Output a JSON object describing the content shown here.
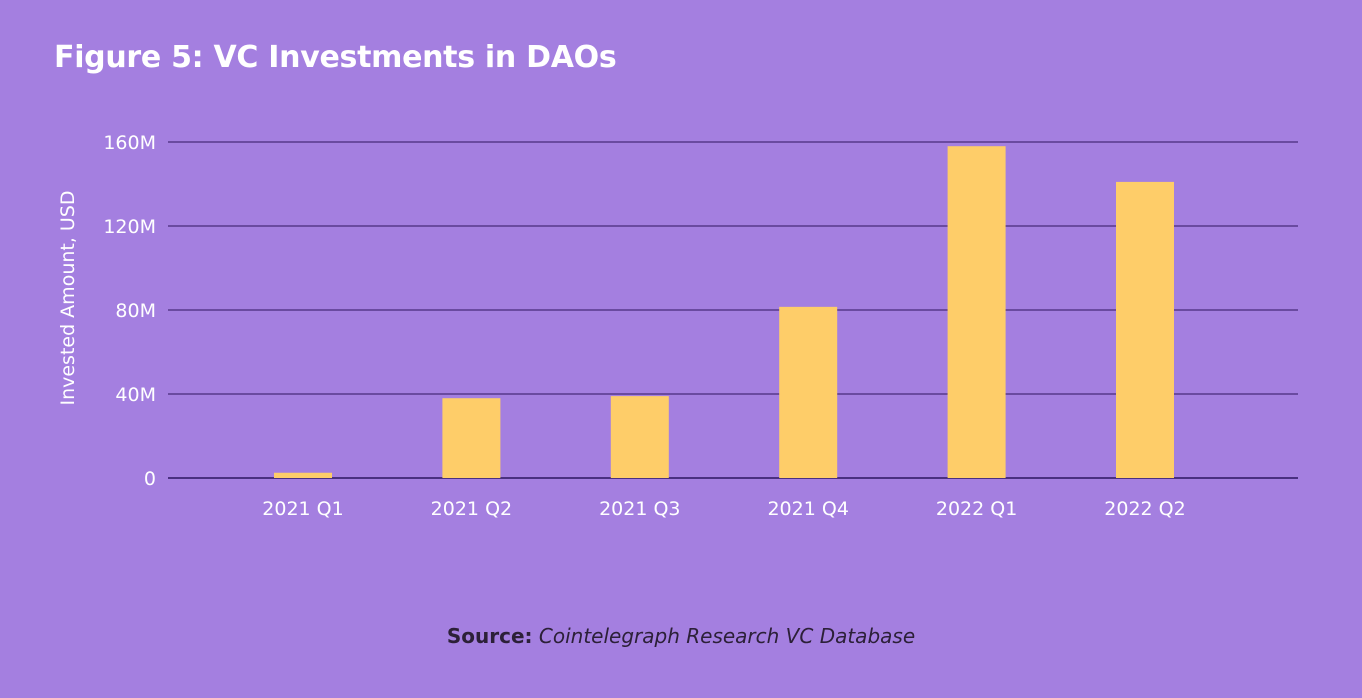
{
  "chart_data": {
    "type": "bar",
    "title": "Figure 5: VC Investments in DAOs",
    "xlabel": "",
    "ylabel": "Invested Amount, USD",
    "categories": [
      "2021 Q1",
      "2021 Q2",
      "2021 Q3",
      "2021 Q4",
      "2022 Q1",
      "2022 Q2"
    ],
    "values": [
      2500000,
      38000000,
      39000000,
      81500000,
      158000000,
      141000000
    ],
    "ylim": [
      0,
      160000000
    ],
    "yticks": [
      0,
      40000000,
      80000000,
      120000000,
      160000000
    ],
    "ytick_labels": [
      "0",
      "40M",
      "80M",
      "120M",
      "160M"
    ],
    "grid": true,
    "legend": "none",
    "colors": {
      "background": "#a47fe0",
      "bar": "#fecd69",
      "grid": "#6a4aa0",
      "axis": "#4a3080"
    }
  },
  "source": {
    "label": "Source:",
    "text": "Cointelegraph Research VC Database"
  }
}
